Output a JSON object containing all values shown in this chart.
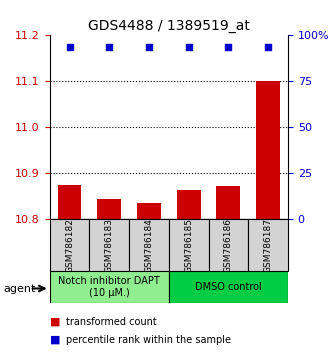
{
  "title": "GDS4488 / 1389519_at",
  "categories": [
    "GSM786182",
    "GSM786183",
    "GSM786184",
    "GSM786185",
    "GSM786186",
    "GSM786187"
  ],
  "bar_values": [
    10.875,
    10.845,
    10.835,
    10.865,
    10.872,
    11.1
  ],
  "bar_bottom": 10.8,
  "percentile_values": [
    97,
    97,
    97,
    97,
    97,
    97
  ],
  "percentile_y": [
    11.175,
    11.175,
    11.175,
    11.175,
    11.175,
    11.175
  ],
  "bar_color": "#cc0000",
  "dot_color": "#0000cc",
  "ylim_left": [
    10.8,
    11.2
  ],
  "ylim_right": [
    0,
    100
  ],
  "yticks_left": [
    10.8,
    10.9,
    11.0,
    11.1,
    11.2
  ],
  "yticks_right": [
    0,
    25,
    50,
    75,
    100
  ],
  "ytick_labels_right": [
    "0",
    "25",
    "50",
    "75",
    "100%"
  ],
  "hlines": [
    10.9,
    11.0,
    11.1
  ],
  "group1_label": "Notch inhibitor DAPT\n(10 μM.)",
  "group2_label": "DMSO control",
  "group1_indices": [
    0,
    1,
    2
  ],
  "group2_indices": [
    3,
    4,
    5
  ],
  "agent_label": "agent",
  "legend1_label": "transformed count",
  "legend2_label": "percentile rank within the sample",
  "group1_color": "#90ee90",
  "group2_color": "#00cc44",
  "xlabel_color": "#cc0000",
  "ylabel_right_color": "#0000cc",
  "bar_width": 0.6
}
